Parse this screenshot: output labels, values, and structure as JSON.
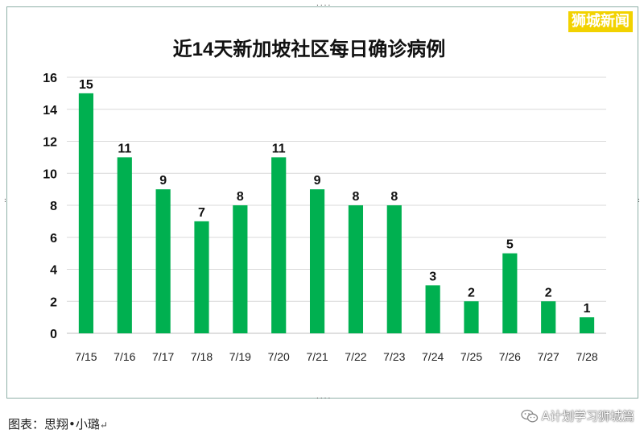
{
  "chart_data": {
    "type": "bar",
    "title": "近14天新加坡社区每日确诊病例",
    "categories": [
      "7/15",
      "7/16",
      "7/17",
      "7/18",
      "7/19",
      "7/20",
      "7/21",
      "7/22",
      "7/23",
      "7/24",
      "7/25",
      "7/26",
      "7/27",
      "7/28"
    ],
    "values": [
      15,
      11,
      9,
      7,
      8,
      11,
      9,
      8,
      8,
      3,
      2,
      5,
      2,
      1
    ],
    "ylim": [
      0,
      16
    ],
    "yticks": [
      0,
      2,
      4,
      6,
      8,
      10,
      12,
      14,
      16
    ],
    "grid": true,
    "bar_color": "#00b050",
    "data_labels": true
  },
  "watermark": "狮城新闻",
  "caption": "图表：思翔•小璐",
  "caption_mark": "↵",
  "source_label": "A计划学习狮城篇",
  "source_icon": "wechat-icon"
}
